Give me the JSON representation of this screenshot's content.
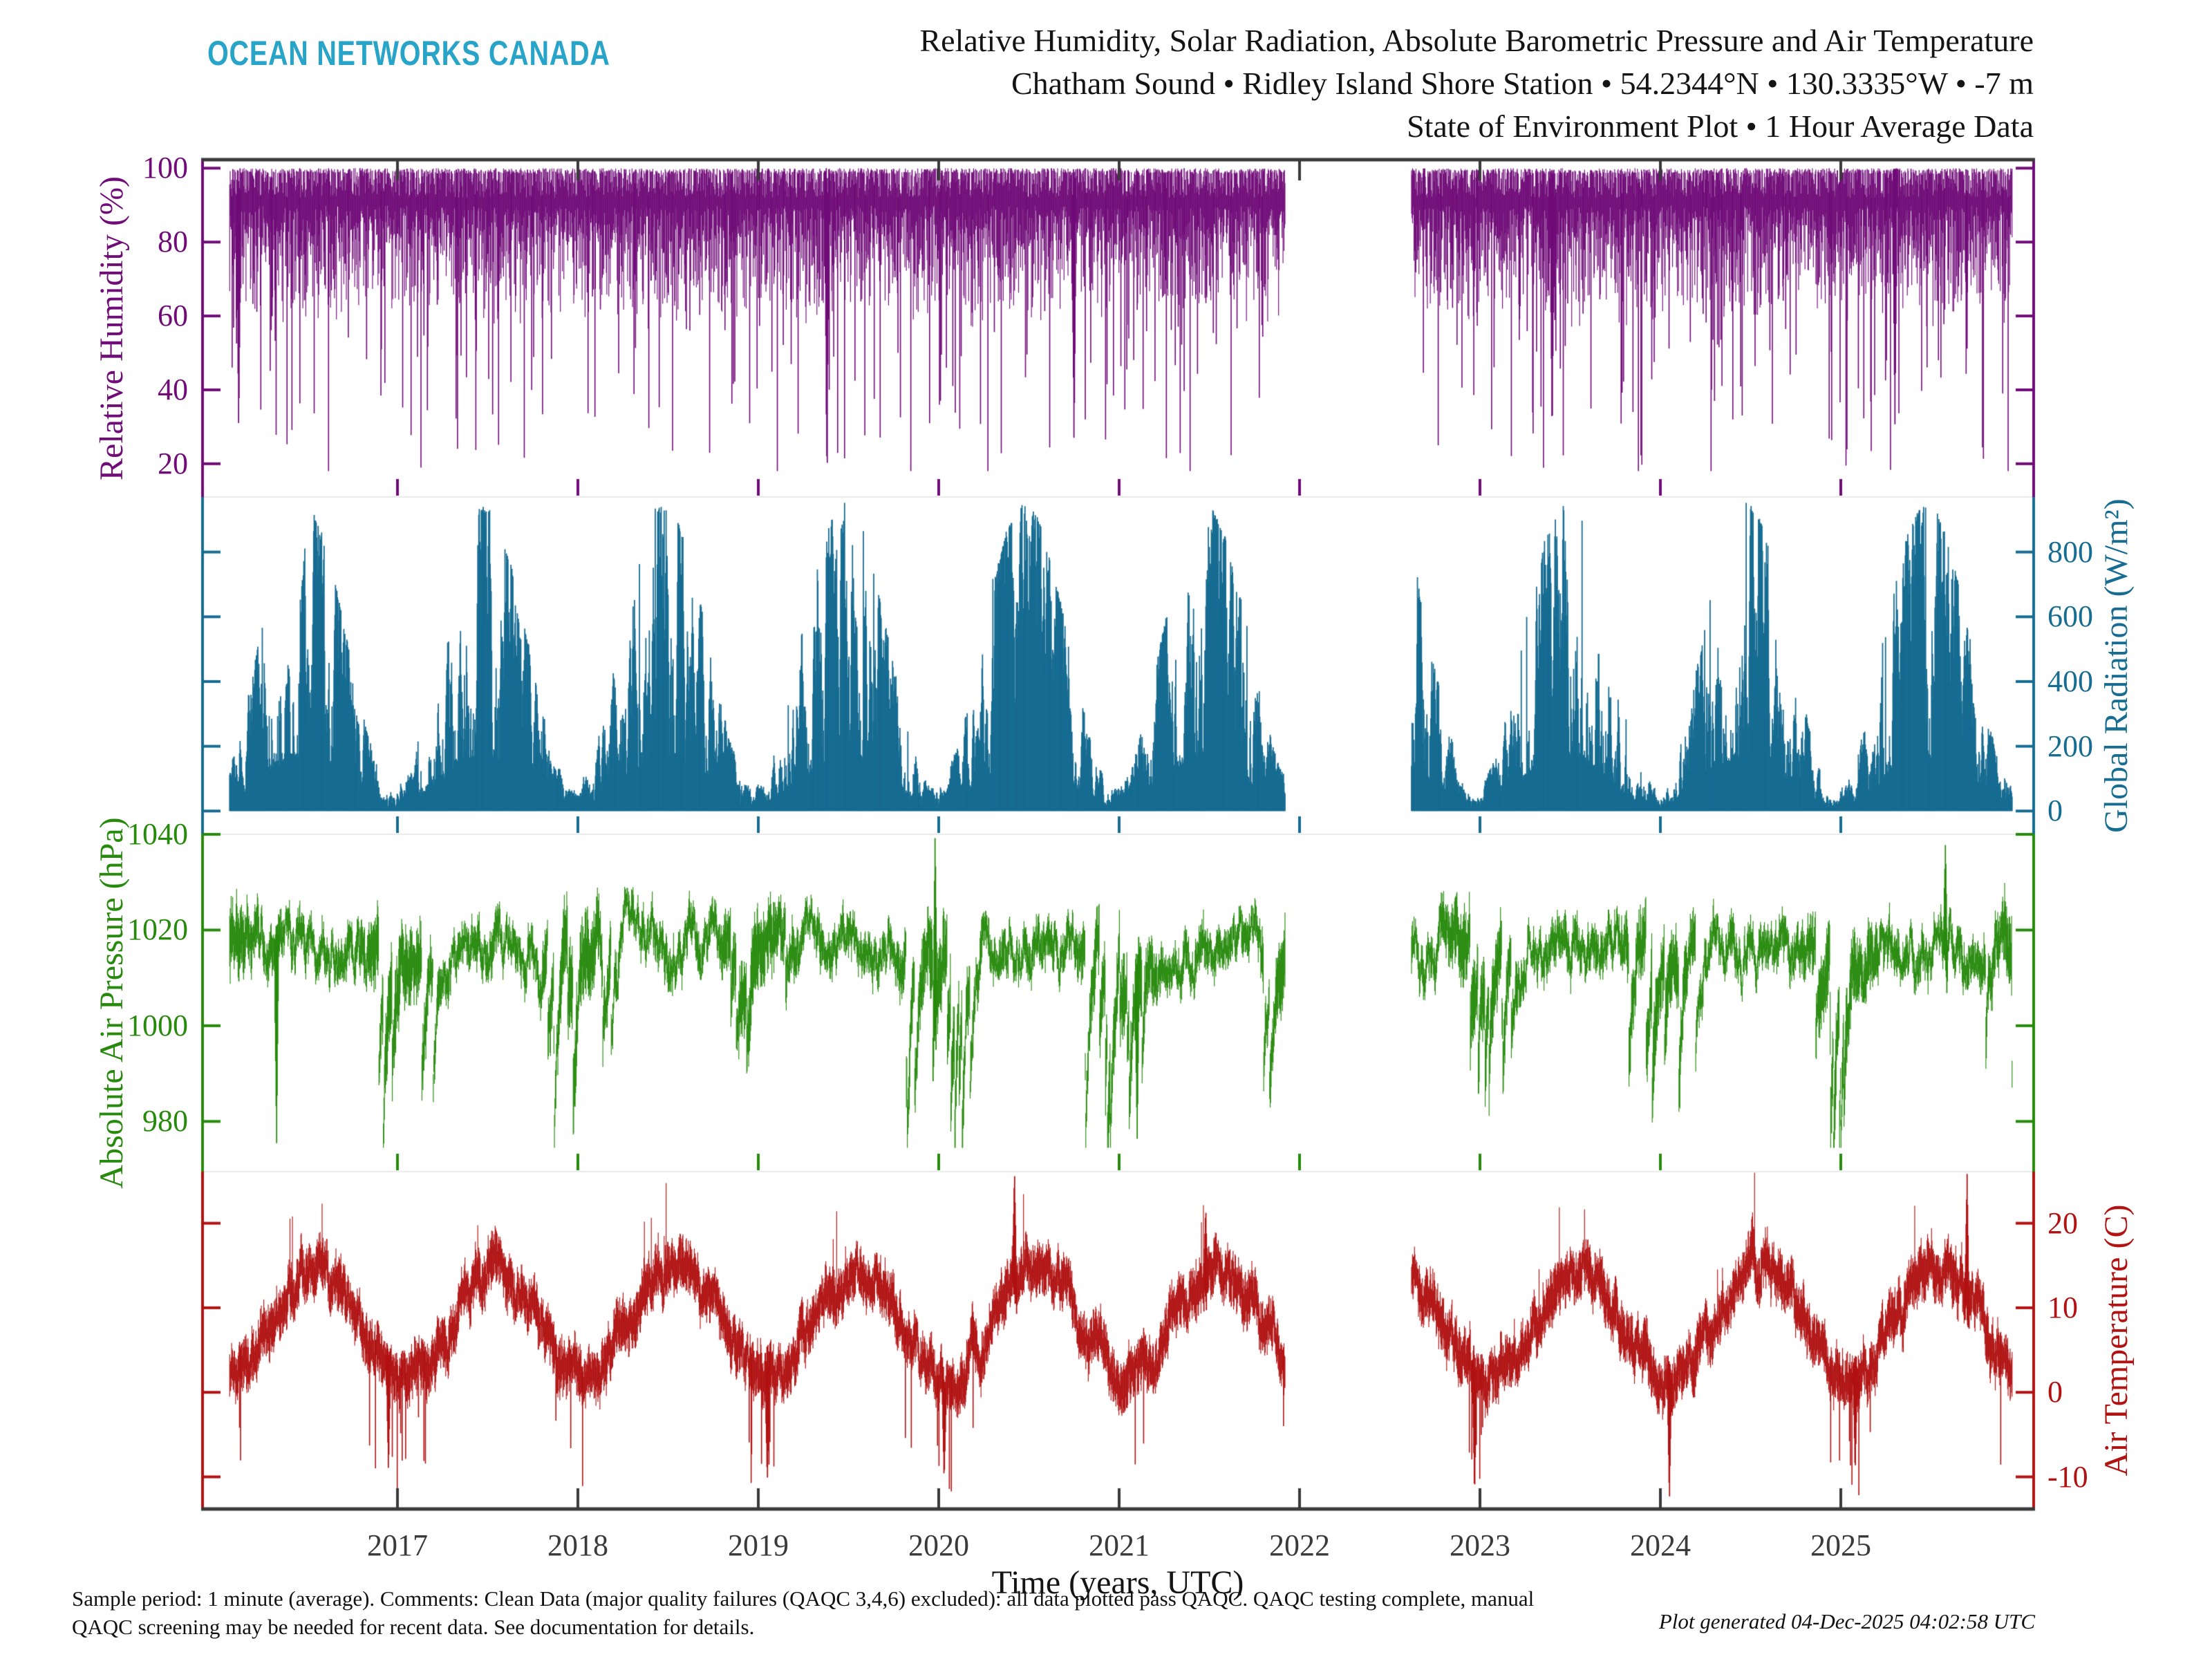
{
  "branding": {
    "logo_text": "OCEAN NETWORKS CANADA",
    "logo_color": "#28A4C9"
  },
  "header": {
    "title_line1": "Relative Humidity, Solar Radiation, Absolute Barometric Pressure and Air Temperature",
    "title_line2": "Chatham Sound • Ridley Island Shore Station • 54.2344°N • 130.3335°W • -7 m",
    "title_line3": "State of Environment Plot • 1 Hour Average Data"
  },
  "footer": {
    "comment_line1": "Sample period: 1 minute (average). Comments: Clean Data (major quality failures (QAQC 3,4,6) excluded): all data plotted pass QAQC. QAQC testing complete, manual",
    "comment_line2": "QAQC screening may be needed for recent data. See documentation for details.",
    "generated": "Plot generated 04-Dec-2025 04:02:58 UTC"
  },
  "chart_data": {
    "type": "line",
    "title": "Relative Humidity, Solar Radiation, Absolute Barometric Pressure and Air Temperature",
    "frame_color": "#3a3a3a",
    "separator_color": "#e9e9e9",
    "background": "#ffffff",
    "x": {
      "label": "Time (years, UTC)",
      "lim": [
        2015.92,
        2026.08
      ],
      "ticks": [
        2017,
        2018,
        2019,
        2020,
        2021,
        2022,
        2023,
        2024,
        2025
      ]
    },
    "time": {
      "start": 2016.07,
      "end": 2025.95,
      "gap": [
        2021.92,
        2022.62
      ],
      "step_days": 1,
      "seed": 42
    },
    "panels": [
      {
        "name": "relative-humidity",
        "ylabel": "Relative Humidity (%)",
        "side": "left",
        "color": "#700C78",
        "ylim": [
          11,
          102.3
        ],
        "yticks": [
          100,
          80,
          60,
          40,
          20
        ],
        "summary": "Band mostly 70–100%, tops plateau at 100, downward spikes to 20–40%",
        "synthesis": {
          "kind": "humidity",
          "hi_plateau_prob": 0.45,
          "hi_base": 92,
          "hi_jitter": 8,
          "band_base": 10,
          "band_var": 26,
          "deep_prob": 0.055,
          "deep_extra": [
            22,
            38
          ],
          "floor": 18
        },
        "events": [
          {
            "t": 2016.12,
            "v": 28
          },
          {
            "t": 2019.38,
            "v": 20
          },
          {
            "t": 2020.75,
            "v": 24
          },
          {
            "t": 2023.4,
            "v": 26
          },
          {
            "t": 2025.3,
            "v": 30
          }
        ]
      },
      {
        "name": "global-radiation",
        "ylabel": "Global Radiation (W/m²)",
        "side": "right",
        "color": "#176C92",
        "ylim": [
          -72,
          970
        ],
        "yticks": [
          800,
          600,
          400,
          200,
          0
        ],
        "summary": "Annual humps from 0 baseline: summer daily maxima ~850–950 W/m², winter ~80–150 W/m²",
        "synthesis": {
          "kind": "radiation",
          "env_mean": 480,
          "env_amp": 425,
          "season_phase": 0.478,
          "cloud_range": [
            0.18,
            1.02
          ],
          "cloud_step": 0.55,
          "clear_prob": 0.015,
          "jitter": 25,
          "max": 952
        },
        "events": []
      },
      {
        "name": "absolute-air-pressure",
        "ylabel": "Absolute Air Pressure (hPa)",
        "side": "left",
        "color": "#278A0D",
        "ylim": [
          969.5,
          1040
        ],
        "yticks": [
          1040,
          1020,
          1000,
          980
        ],
        "summary": "Noisy band around 1010–1025 hPa, winter storm dips to ~975, rare highs ~1040",
        "synthesis": {
          "kind": "pressure",
          "mean": 1016,
          "revert": 0.1,
          "step": 5.0,
          "range_base": 1.2,
          "range_var": 3.0,
          "winter_var": 1.1,
          "storm_prob": 0.035,
          "storm_drop": [
            12,
            16
          ],
          "clamp": [
            974.5,
            1041
          ]
        },
        "events": [
          {
            "t": 2016.33,
            "v": 974.5
          },
          {
            "t": 2019.98,
            "v": 1040.5
          },
          {
            "t": 2021.1,
            "v": 976
          },
          {
            "t": 2025.58,
            "v": 1038.5
          }
        ]
      },
      {
        "name": "air-temperature",
        "ylabel": "Air Temperature (C)",
        "side": "right",
        "color": "#B11212",
        "ylim": [
          -13.8,
          26.1
        ],
        "yticks": [
          20,
          10,
          0,
          -10
        ],
        "summary": "Seasonal cycle ~2 C winter to ~15 C summer; cold snaps to -13 C; heat spikes to ~26 C",
        "synthesis": {
          "kind": "temperature",
          "mean": 8.2,
          "amp": 6.4,
          "season_phase": 0.545,
          "walk_step": 2.2,
          "walk_revert": 0.15,
          "range": [
            1.1,
            2.0
          ],
          "cold_prob": 0.05,
          "cold_drop": [
            5,
            6
          ],
          "warm_prob": 0.02,
          "warm_add": [
            3,
            5
          ],
          "clamp": [
            -13.3,
            26.3
          ]
        },
        "events": [
          {
            "t": 2016.95,
            "v": -9.5
          },
          {
            "t": 2019.05,
            "v": -11
          },
          {
            "t": 2020.03,
            "v": -10.5
          },
          {
            "t": 2020.42,
            "v": 26.3
          },
          {
            "t": 2021.48,
            "v": 22
          },
          {
            "t": 2022.97,
            "v": -12.5
          },
          {
            "t": 2024.05,
            "v": -13
          },
          {
            "t": 2025.08,
            "v": -9.5
          },
          {
            "t": 2025.7,
            "v": 26
          }
        ]
      }
    ]
  }
}
